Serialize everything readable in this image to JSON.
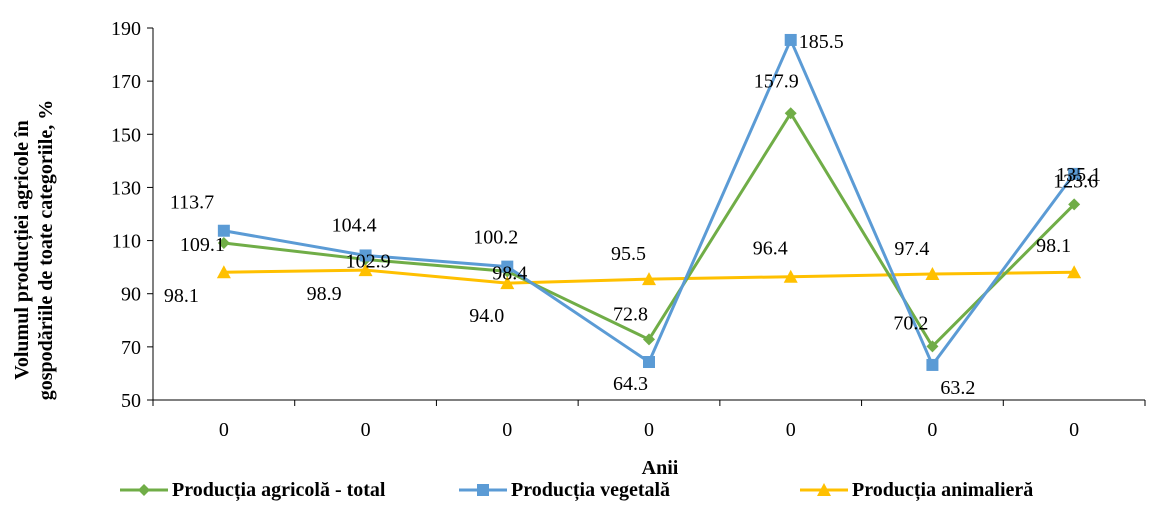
{
  "chart_data": {
    "type": "line",
    "title": "",
    "xlabel": "Anii",
    "ylabel": "Volumul producției agricole în gospodăriile de toate categoriile, %",
    "ylabel_lines": [
      "Volumul producției agricole în",
      "gospodăriile de toate categoriile, %"
    ],
    "categories": [
      "0",
      "0",
      "0",
      "0",
      "0",
      "0",
      "0"
    ],
    "ylim": [
      50,
      190
    ],
    "yticks": [
      50,
      70,
      90,
      110,
      130,
      150,
      170,
      190
    ],
    "grid": false,
    "legend_position": "bottom",
    "series": [
      {
        "name": "Producția agricolă - total",
        "color": "#70AD47",
        "marker": "diamond",
        "values": [
          109.1,
          102.9,
          98.4,
          72.8,
          157.9,
          70.2,
          123.6
        ],
        "labels": [
          "109.1",
          "102.9",
          "98.4",
          "72.8",
          "157.9",
          "70.2",
          "123.6"
        ]
      },
      {
        "name": "Producția vegetală",
        "color": "#5B9BD5",
        "marker": "square",
        "values": [
          113.7,
          104.4,
          100.2,
          64.3,
          185.5,
          63.2,
          135.1
        ],
        "labels": [
          "113.7",
          "104.4",
          "100.2",
          "64.3",
          "185.5",
          "63.2",
          "135.1"
        ]
      },
      {
        "name": "Producția animalieră",
        "color": "#FFC000",
        "marker": "triangle",
        "values": [
          98.1,
          98.9,
          94.0,
          95.5,
          96.4,
          97.4,
          98.1
        ],
        "labels": [
          "98.1",
          "98.9",
          "94.0",
          "95.5",
          "96.4",
          "97.4",
          "98.1"
        ]
      }
    ]
  }
}
